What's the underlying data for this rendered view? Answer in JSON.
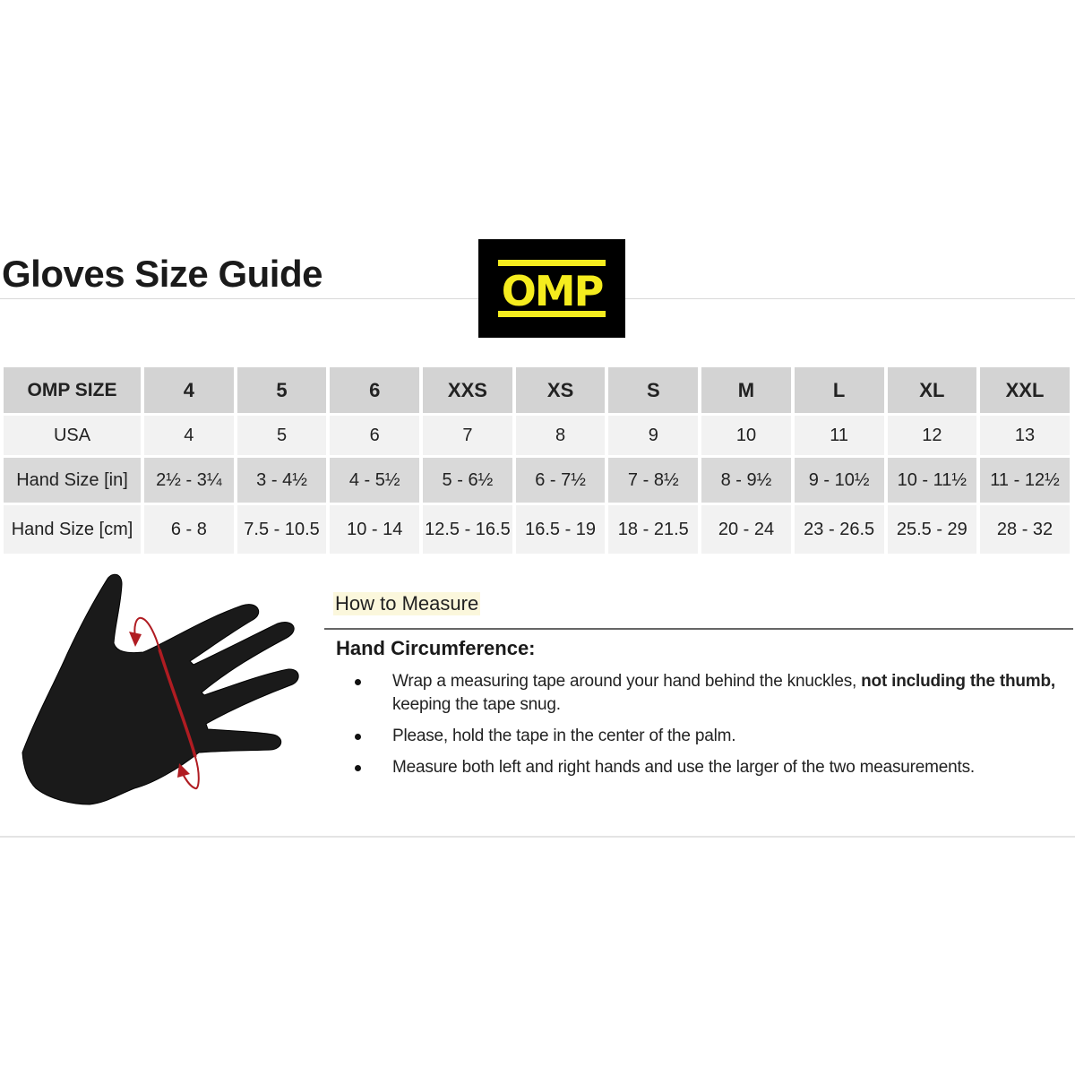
{
  "title": "Gloves Size Guide",
  "logo": {
    "text": "OMP",
    "colors": {
      "background": "#000000",
      "foreground": "#f5ec1e"
    }
  },
  "table": {
    "header": [
      "OMP SIZE",
      "4",
      "5",
      "6",
      "XXS",
      "XS",
      "S",
      "M",
      "L",
      "XL",
      "XXL"
    ],
    "rows": [
      [
        "USA",
        "4",
        "5",
        "6",
        "7",
        "8",
        "9",
        "10",
        "11",
        "12",
        "13"
      ],
      [
        "Hand Size [in]",
        "2½ - 3¼",
        "3 - 4½",
        "4 - 5½",
        "5 - 6½",
        "6 - 7½",
        "7 - 8½",
        "8 - 9½",
        "9 - 10½",
        "10 - 11½",
        "11 - 12½"
      ],
      [
        "Hand Size [cm]",
        "6 - 8",
        "7.5 - 10.5",
        "10 - 14",
        "12.5 - 16.5",
        "16.5 - 19",
        "18 - 21.5",
        "20 - 24",
        "23 - 26.5",
        "25.5 - 29",
        "28 - 32"
      ]
    ]
  },
  "illustration": {
    "icon": "hand-measuring-tape-icon",
    "tape_color": "#b01c22"
  },
  "how_to": {
    "heading": "How to Measure",
    "subheading": "Hand Circumference:",
    "bullets": [
      {
        "text": "Wrap a measuring tape around your hand behind the knuckles, ",
        "bold": "not including the thumb,",
        "after": " keeping the tape snug."
      },
      {
        "text": "Please, hold the tape in the center of the palm."
      },
      {
        "text": "Measure both left and right hands and use the larger of the two measurements."
      }
    ]
  }
}
